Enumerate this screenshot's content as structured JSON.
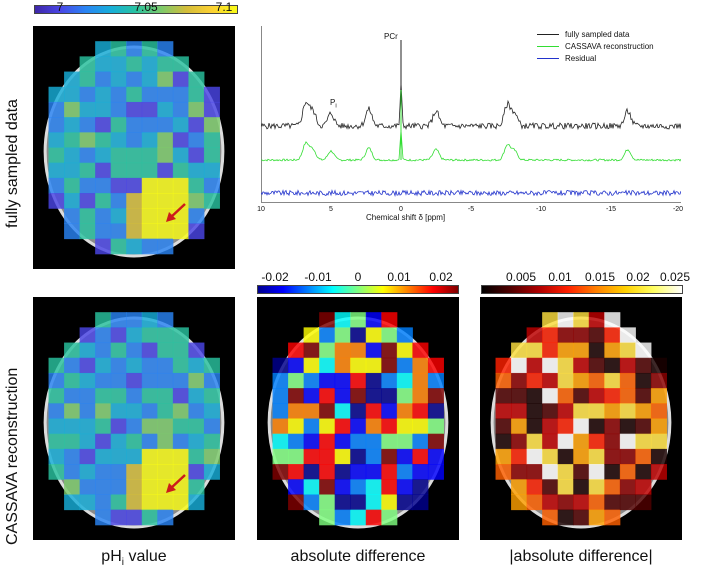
{
  "colors": {
    "fully": "#222222",
    "recon": "#33dd33",
    "residual": "#2233cc",
    "arrow": "#cc1b1b"
  },
  "row_labels": {
    "top": "fully sampled data",
    "bottom": "CASSAVA reconstruction"
  },
  "captions": {
    "col1": "pH",
    "col1_sub": "i",
    "col1_suffix": " value",
    "col2": "absolute difference",
    "col3": "|absolute difference|"
  },
  "colorbars": {
    "ph": {
      "ticks": [
        "7",
        "7.05",
        "7.1"
      ],
      "colormap": "parula"
    },
    "diff": {
      "ticks": [
        "-0.02",
        "-0.01",
        "0",
        "0.01",
        "0.02"
      ],
      "colormap": "jet"
    },
    "absdiff": {
      "ticks": [
        "0.005",
        "0.01",
        "0.015",
        "0.02",
        "0.025"
      ],
      "colormap": "hot"
    }
  },
  "chart_data": {
    "type": "line",
    "title": "",
    "xlabel": "Chemical shift δ [ppm]",
    "ylabel": "",
    "xlim": [
      10,
      -20
    ],
    "x_ticks": [
      "10",
      "5",
      "0",
      "-5",
      "-10",
      "-15",
      "-20"
    ],
    "annotations": [
      "PCr",
      "P",
      "i"
    ],
    "peaks_ppm": [
      6.8,
      6.3,
      5.0,
      2.3,
      0,
      -2.5,
      -7.6,
      -8.1,
      -16.2
    ],
    "series": [
      {
        "name": "fully sampled data",
        "color": "#222222"
      },
      {
        "name": "CASSAVA reconstruction",
        "color": "#33dd33"
      },
      {
        "name": "Residual",
        "color": "#2233cc"
      }
    ]
  }
}
